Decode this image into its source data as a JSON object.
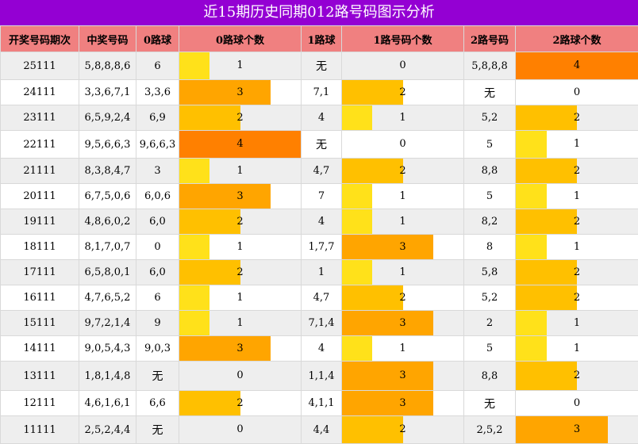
{
  "title": "近15期历史同期012路号码图示分析",
  "headers": [
    "开奖号码期次",
    "中奖号码",
    "0路球",
    "0路球个数",
    "1路球",
    "1路号码个数",
    "2路号码",
    "2路球个数"
  ],
  "colors": {
    "title_bg": "#9400d3",
    "header_bg": "#f08080",
    "c1": "#ffe11a",
    "c2": "#ffc000",
    "c3": "#ffa500",
    "c4": "#ff8000"
  },
  "rows": [
    {
      "issue": "25111",
      "num": "5,8,8,8,6",
      "r0": "6",
      "c0": 1,
      "r1": "无",
      "c1": 0,
      "r2": "5,8,8,8",
      "c2": 4
    },
    {
      "issue": "24111",
      "num": "3,3,6,7,1",
      "r0": "3,3,6",
      "c0": 3,
      "r1": "7,1",
      "c1": 2,
      "r2": "无",
      "c2": 0
    },
    {
      "issue": "23111",
      "num": "6,5,9,2,4",
      "r0": "6,9",
      "c0": 2,
      "r1": "4",
      "c1": 1,
      "r2": "5,2",
      "c2": 2
    },
    {
      "issue": "22111",
      "num": "9,5,6,6,3",
      "r0": "9,6,6,3",
      "c0": 4,
      "r1": "无",
      "c1": 0,
      "r2": "5",
      "c2": 1
    },
    {
      "issue": "21111",
      "num": "8,3,8,4,7",
      "r0": "3",
      "c0": 1,
      "r1": "4,7",
      "c1": 2,
      "r2": "8,8",
      "c2": 2
    },
    {
      "issue": "20111",
      "num": "6,7,5,0,6",
      "r0": "6,0,6",
      "c0": 3,
      "r1": "7",
      "c1": 1,
      "r2": "5",
      "c2": 1
    },
    {
      "issue": "19111",
      "num": "4,8,6,0,2",
      "r0": "6,0",
      "c0": 2,
      "r1": "4",
      "c1": 1,
      "r2": "8,2",
      "c2": 2
    },
    {
      "issue": "18111",
      "num": "8,1,7,0,7",
      "r0": "0",
      "c0": 1,
      "r1": "1,7,7",
      "c1": 3,
      "r2": "8",
      "c2": 1
    },
    {
      "issue": "17111",
      "num": "6,5,8,0,1",
      "r0": "6,0",
      "c0": 2,
      "r1": "1",
      "c1": 1,
      "r2": "5,8",
      "c2": 2
    },
    {
      "issue": "16111",
      "num": "4,7,6,5,2",
      "r0": "6",
      "c0": 1,
      "r1": "4,7",
      "c1": 2,
      "r2": "5,2",
      "c2": 2
    },
    {
      "issue": "15111",
      "num": "9,7,2,1,4",
      "r0": "9",
      "c0": 1,
      "r1": "7,1,4",
      "c1": 3,
      "r2": "2",
      "c2": 1
    },
    {
      "issue": "14111",
      "num": "9,0,5,4,3",
      "r0": "9,0,3",
      "c0": 3,
      "r1": "4",
      "c1": 1,
      "r2": "5",
      "c2": 1
    },
    {
      "issue": "13111",
      "num": "1,8,1,4,8",
      "r0": "无",
      "c0": 0,
      "r1": "1,1,4",
      "c1": 3,
      "r2": "8,8",
      "c2": 2
    },
    {
      "issue": "12111",
      "num": "4,6,1,6,1",
      "r0": "6,6",
      "c0": 2,
      "r1": "4,1,1",
      "c1": 3,
      "r2": "无",
      "c2": 0
    },
    {
      "issue": "11111",
      "num": "2,5,2,4,4",
      "r0": "无",
      "c0": 0,
      "r1": "4,4",
      "c1": 2,
      "r2": "2,5,2",
      "c2": 3
    }
  ]
}
